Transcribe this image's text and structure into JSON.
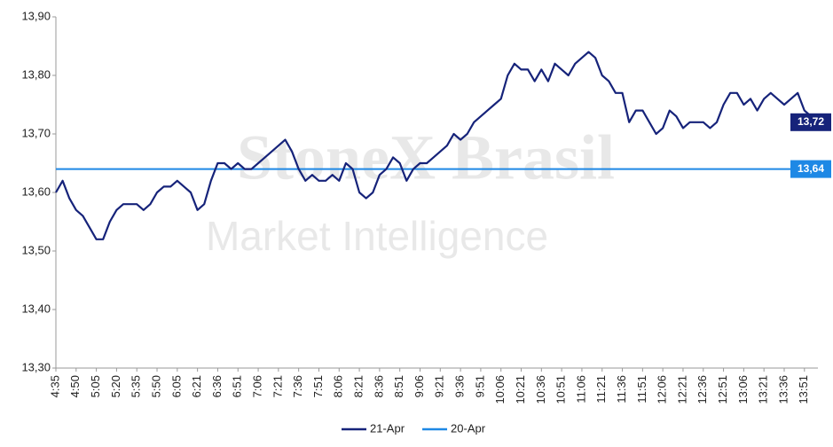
{
  "chart_data": {
    "type": "line",
    "watermark": [
      "StoneX Brasil",
      "Market Intelligence"
    ],
    "categories": [
      "4:35",
      null,
      null,
      "4:50",
      null,
      null,
      "5:05",
      null,
      null,
      "5:20",
      null,
      null,
      "5:35",
      null,
      null,
      "5:50",
      null,
      null,
      "6:05",
      null,
      null,
      "6:21",
      null,
      null,
      "6:36",
      null,
      null,
      "6:51",
      null,
      null,
      "7:06",
      null,
      null,
      "7:21",
      null,
      null,
      "7:36",
      null,
      null,
      "7:51",
      null,
      null,
      "8:06",
      null,
      null,
      "8:21",
      null,
      null,
      "8:36",
      null,
      null,
      "8:51",
      null,
      null,
      "9:06",
      null,
      null,
      "9:21",
      null,
      null,
      "9:36",
      null,
      null,
      "9:51",
      null,
      null,
      "10:06",
      null,
      null,
      "10:21",
      null,
      null,
      "10:36",
      null,
      null,
      "10:51",
      null,
      null,
      "11:06",
      null,
      null,
      "11:21",
      null,
      null,
      "11:36",
      null,
      null,
      "11:51",
      null,
      null,
      "12:06",
      null,
      null,
      "12:21",
      null,
      null,
      "12:36",
      null,
      null,
      "12:51",
      null,
      null,
      "13:06",
      null,
      null,
      "13:21",
      null,
      null,
      "13:36",
      null,
      null,
      "13:51",
      null,
      null
    ],
    "series": [
      {
        "name": "21-Apr",
        "color": "#16237a",
        "last_value_label": "13,72",
        "values": [
          13.6,
          13.62,
          13.59,
          13.57,
          13.56,
          13.54,
          13.52,
          13.52,
          13.55,
          13.57,
          13.58,
          13.58,
          13.58,
          13.57,
          13.58,
          13.6,
          13.61,
          13.61,
          13.62,
          13.61,
          13.6,
          13.57,
          13.58,
          13.62,
          13.65,
          13.65,
          13.64,
          13.65,
          13.64,
          13.64,
          13.65,
          13.66,
          13.67,
          13.68,
          13.69,
          13.67,
          13.64,
          13.62,
          13.63,
          13.62,
          13.62,
          13.63,
          13.62,
          13.65,
          13.64,
          13.6,
          13.59,
          13.6,
          13.63,
          13.64,
          13.66,
          13.65,
          13.62,
          13.64,
          13.65,
          13.65,
          13.66,
          13.67,
          13.68,
          13.7,
          13.69,
          13.7,
          13.72,
          13.73,
          13.74,
          13.75,
          13.76,
          13.8,
          13.82,
          13.81,
          13.81,
          13.79,
          13.81,
          13.79,
          13.82,
          13.81,
          13.8,
          13.82,
          13.83,
          13.84,
          13.83,
          13.8,
          13.79,
          13.77,
          13.77,
          13.72,
          13.74,
          13.74,
          13.72,
          13.7,
          13.71,
          13.74,
          13.73,
          13.71,
          13.72,
          13.72,
          13.72,
          13.71,
          13.72,
          13.75,
          13.77,
          13.77,
          13.75,
          13.76,
          13.74,
          13.76,
          13.77,
          13.76,
          13.75,
          13.76,
          13.77,
          13.74,
          13.73,
          13.72
        ]
      },
      {
        "name": "20-Apr",
        "color": "#1e88e5",
        "value": 13.64,
        "value_label": "13,64"
      }
    ],
    "ylim": [
      13.3,
      13.9
    ],
    "yticks": [
      {
        "value": 13.3,
        "label": "13,30"
      },
      {
        "value": 13.4,
        "label": "13,40"
      },
      {
        "value": 13.5,
        "label": "13,50"
      },
      {
        "value": 13.6,
        "label": "13,60"
      },
      {
        "value": 13.7,
        "label": "13,70"
      },
      {
        "value": 13.8,
        "label": "13,80"
      },
      {
        "value": 13.9,
        "label": "13,90"
      }
    ]
  }
}
